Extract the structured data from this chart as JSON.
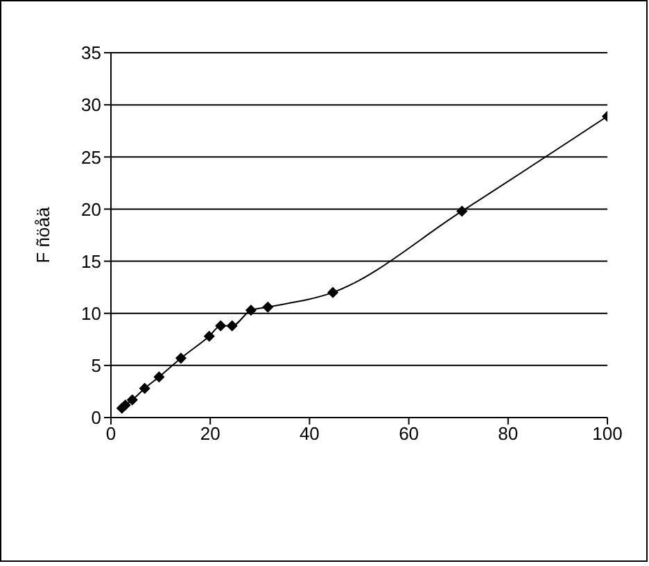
{
  "chart_data": {
    "type": "line",
    "ylabel": "F ñöåä",
    "x": [
      2.2,
      2.9,
      4.3,
      6.8,
      9.7,
      14.1,
      19.8,
      22.1,
      24.4,
      28.2,
      31.6,
      44.7,
      70.7,
      100
    ],
    "values": [
      0.9,
      1.2,
      1.7,
      2.8,
      3.9,
      5.7,
      7.8,
      8.8,
      8.8,
      10.3,
      10.6,
      12.0,
      19.8,
      28.9
    ],
    "color": "#000000",
    "xlim": [
      0,
      100
    ],
    "xticks": [
      0,
      20,
      40,
      60,
      80,
      100
    ],
    "ylim": [
      0,
      35
    ],
    "yticks": [
      0,
      5,
      10,
      15,
      20,
      25,
      30,
      35
    ],
    "grid": "y",
    "marker": "diamond",
    "line_style": "solid"
  }
}
